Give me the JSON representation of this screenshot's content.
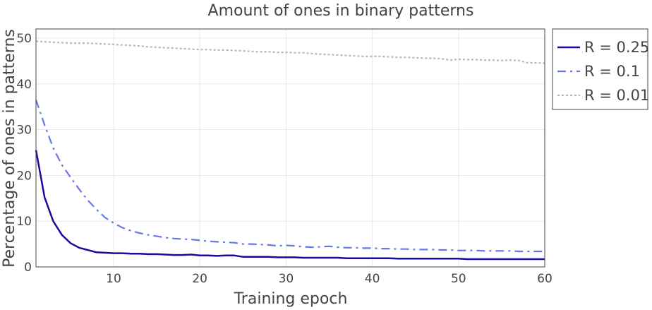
{
  "chart_data": {
    "type": "line",
    "title": "Amount of ones in binary patterns",
    "xlabel": "Training epoch",
    "ylabel": "Percentage of ones in patterns",
    "xlim": [
      1,
      60
    ],
    "ylim": [
      0,
      52
    ],
    "x_ticks": [
      "10",
      "20",
      "30",
      "40",
      "50",
      "60"
    ],
    "x_tick_values": [
      10,
      20,
      30,
      40,
      50,
      60
    ],
    "y_ticks": [
      "0",
      "10",
      "20",
      "30",
      "40",
      "50"
    ],
    "y_tick_values": [
      0,
      10,
      20,
      30,
      40,
      50
    ],
    "grid": true,
    "legend_position": "right",
    "series": [
      {
        "name": "R = 0.25",
        "color": "#1a0a9e",
        "style": "solid",
        "x": [
          1,
          2,
          3,
          4,
          5,
          6,
          7,
          8,
          9,
          10,
          11,
          12,
          13,
          14,
          15,
          16,
          17,
          18,
          19,
          20,
          21,
          22,
          23,
          24,
          25,
          26,
          27,
          28,
          29,
          30,
          31,
          32,
          33,
          34,
          35,
          36,
          37,
          38,
          39,
          40,
          41,
          42,
          43,
          44,
          45,
          46,
          47,
          48,
          49,
          50,
          51,
          52,
          53,
          54,
          55,
          56,
          57,
          58,
          59,
          60
        ],
        "values": [
          25.5,
          15.2,
          10.0,
          7.0,
          5.2,
          4.2,
          3.7,
          3.2,
          3.1,
          3.0,
          3.0,
          2.9,
          2.9,
          2.8,
          2.8,
          2.7,
          2.6,
          2.6,
          2.7,
          2.5,
          2.5,
          2.4,
          2.5,
          2.5,
          2.2,
          2.2,
          2.2,
          2.2,
          2.1,
          2.1,
          2.1,
          2.0,
          2.0,
          2.0,
          2.0,
          2.0,
          1.9,
          1.9,
          1.9,
          1.9,
          1.9,
          1.9,
          1.8,
          1.8,
          1.8,
          1.8,
          1.8,
          1.8,
          1.8,
          1.8,
          1.7,
          1.7,
          1.7,
          1.7,
          1.7,
          1.7,
          1.7,
          1.7,
          1.7,
          1.7
        ]
      },
      {
        "name": "R = 0.1",
        "color": "#6677e6",
        "style": "dashdot",
        "x": [
          1,
          2,
          3,
          4,
          5,
          6,
          7,
          8,
          9,
          10,
          11,
          12,
          13,
          14,
          15,
          16,
          17,
          18,
          19,
          20,
          21,
          22,
          23,
          24,
          25,
          26,
          27,
          28,
          29,
          30,
          31,
          32,
          33,
          34,
          35,
          36,
          37,
          38,
          39,
          40,
          41,
          42,
          43,
          44,
          45,
          46,
          47,
          48,
          49,
          50,
          51,
          52,
          53,
          54,
          55,
          56,
          57,
          58,
          59,
          60
        ],
        "values": [
          36.5,
          31.0,
          26.0,
          22.3,
          19.6,
          17.0,
          14.6,
          12.6,
          10.8,
          9.6,
          8.6,
          7.9,
          7.4,
          7.0,
          6.7,
          6.4,
          6.2,
          6.1,
          6.0,
          5.8,
          5.6,
          5.5,
          5.4,
          5.3,
          5.0,
          5.0,
          4.9,
          4.8,
          4.6,
          4.7,
          4.6,
          4.4,
          4.3,
          4.4,
          4.5,
          4.3,
          4.2,
          4.2,
          4.1,
          4.1,
          4.0,
          4.0,
          3.9,
          3.9,
          3.8,
          3.8,
          3.8,
          3.7,
          3.7,
          3.6,
          3.6,
          3.6,
          3.5,
          3.5,
          3.5,
          3.5,
          3.4,
          3.4,
          3.4,
          3.4
        ]
      },
      {
        "name": "R = 0.01",
        "color": "#b8b8b8",
        "style": "dotted",
        "x": [
          1,
          2,
          3,
          4,
          5,
          6,
          7,
          8,
          9,
          10,
          11,
          12,
          13,
          14,
          15,
          16,
          17,
          18,
          19,
          20,
          21,
          22,
          23,
          24,
          25,
          26,
          27,
          28,
          29,
          30,
          31,
          32,
          33,
          34,
          35,
          36,
          37,
          38,
          39,
          40,
          41,
          42,
          43,
          44,
          45,
          46,
          47,
          48,
          49,
          50,
          51,
          52,
          53,
          54,
          55,
          56,
          57,
          58,
          59,
          60
        ],
        "values": [
          49.3,
          49.2,
          49.1,
          49.0,
          48.9,
          48.9,
          48.9,
          48.8,
          48.7,
          48.6,
          48.5,
          48.4,
          48.3,
          48.1,
          48.0,
          47.9,
          47.8,
          47.7,
          47.6,
          47.5,
          47.5,
          47.4,
          47.4,
          47.3,
          47.2,
          47.1,
          47.0,
          47.0,
          46.9,
          46.9,
          46.8,
          46.8,
          46.6,
          46.5,
          46.4,
          46.3,
          46.2,
          46.1,
          46.0,
          46.0,
          46.0,
          45.9,
          45.8,
          45.8,
          45.7,
          45.6,
          45.6,
          45.5,
          45.2,
          45.4,
          45.3,
          45.3,
          45.2,
          45.2,
          45.1,
          45.2,
          45.1,
          44.6,
          44.6,
          44.5
        ]
      }
    ]
  }
}
